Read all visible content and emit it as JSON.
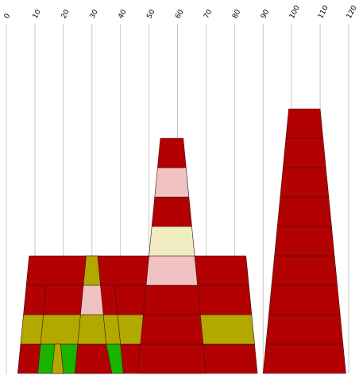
{
  "chart_data": {
    "type": "bar",
    "orientation": "stacked-tapered-towers",
    "x_ticks": [
      "0",
      "10",
      "20",
      "30",
      "40",
      "50",
      "60",
      "70",
      "80",
      "90",
      "100",
      "110",
      "120"
    ],
    "xlim": [
      0,
      120
    ],
    "grid": true,
    "colors": {
      "red": "#b30000",
      "olive": "#b3a800",
      "pink": "#f0c2c2",
      "cream": "#f0edc2",
      "green": "#19b300"
    },
    "towers": [
      {
        "name": "",
        "base": [
          4,
          88
        ],
        "segments": [
          {
            "top": [
              5,
              87
            ],
            "color": "red"
          },
          {
            "top": [
              6,
              86
            ],
            "color": "olive"
          },
          {
            "top": [
              7,
              85
            ],
            "color": "red"
          },
          {
            "top": [
              8,
              84
            ],
            "color": "red"
          }
        ]
      },
      {
        "name": "",
        "base": [
          11,
          41
        ],
        "segments": [
          {
            "top": [
              12,
              40
            ],
            "color": "green"
          },
          {
            "top": [
              13,
              39
            ],
            "color": "olive"
          },
          {
            "top": [
              14,
              38
            ],
            "color": "red"
          }
        ]
      },
      {
        "name": "",
        "base": [
          16,
          20
        ],
        "segments": [
          {
            "top": [
              17,
              19
            ],
            "color": "olive"
          }
        ]
      },
      {
        "name": "",
        "base": [
          24,
          37
        ],
        "segments": [
          {
            "top": [
              25,
              35
            ],
            "color": "red"
          },
          {
            "top": [
              26,
              34
            ],
            "color": "olive"
          },
          {
            "top": [
              27,
              33
            ],
            "color": "pink"
          },
          {
            "top": [
              28,
              32
            ],
            "color": "olive"
          }
        ]
      },
      {
        "name": "",
        "base": [
          46,
          70
        ],
        "segments": [
          {
            "top": [
              47,
              69
            ],
            "color": "red"
          },
          {
            "top": [
              48,
              68
            ],
            "color": "red"
          },
          {
            "top": [
              49,
              67
            ],
            "color": "red"
          },
          {
            "top": [
              50,
              66
            ],
            "color": "pink"
          },
          {
            "top": [
              51,
              65
            ],
            "color": "cream"
          },
          {
            "top": [
              52,
              64
            ],
            "color": "red"
          },
          {
            "top": [
              53,
              63
            ],
            "color": "pink"
          },
          {
            "top": [
              54,
              62
            ],
            "color": "red"
          }
        ]
      },
      {
        "name": "",
        "base": [
          90,
          119
        ],
        "segments": [
          {
            "top": [
              91,
              118
            ],
            "color": "red"
          },
          {
            "top": [
              92,
              117
            ],
            "color": "red"
          },
          {
            "top": [
              93,
              116
            ],
            "color": "red"
          },
          {
            "top": [
              94,
              115
            ],
            "color": "red"
          },
          {
            "top": [
              95,
              114
            ],
            "color": "red"
          },
          {
            "top": [
              96,
              113
            ],
            "color": "red"
          },
          {
            "top": [
              97,
              112
            ],
            "color": "red"
          },
          {
            "top": [
              98,
              111
            ],
            "color": "red"
          },
          {
            "top": [
              99,
              110
            ],
            "color": "red"
          }
        ]
      }
    ]
  }
}
